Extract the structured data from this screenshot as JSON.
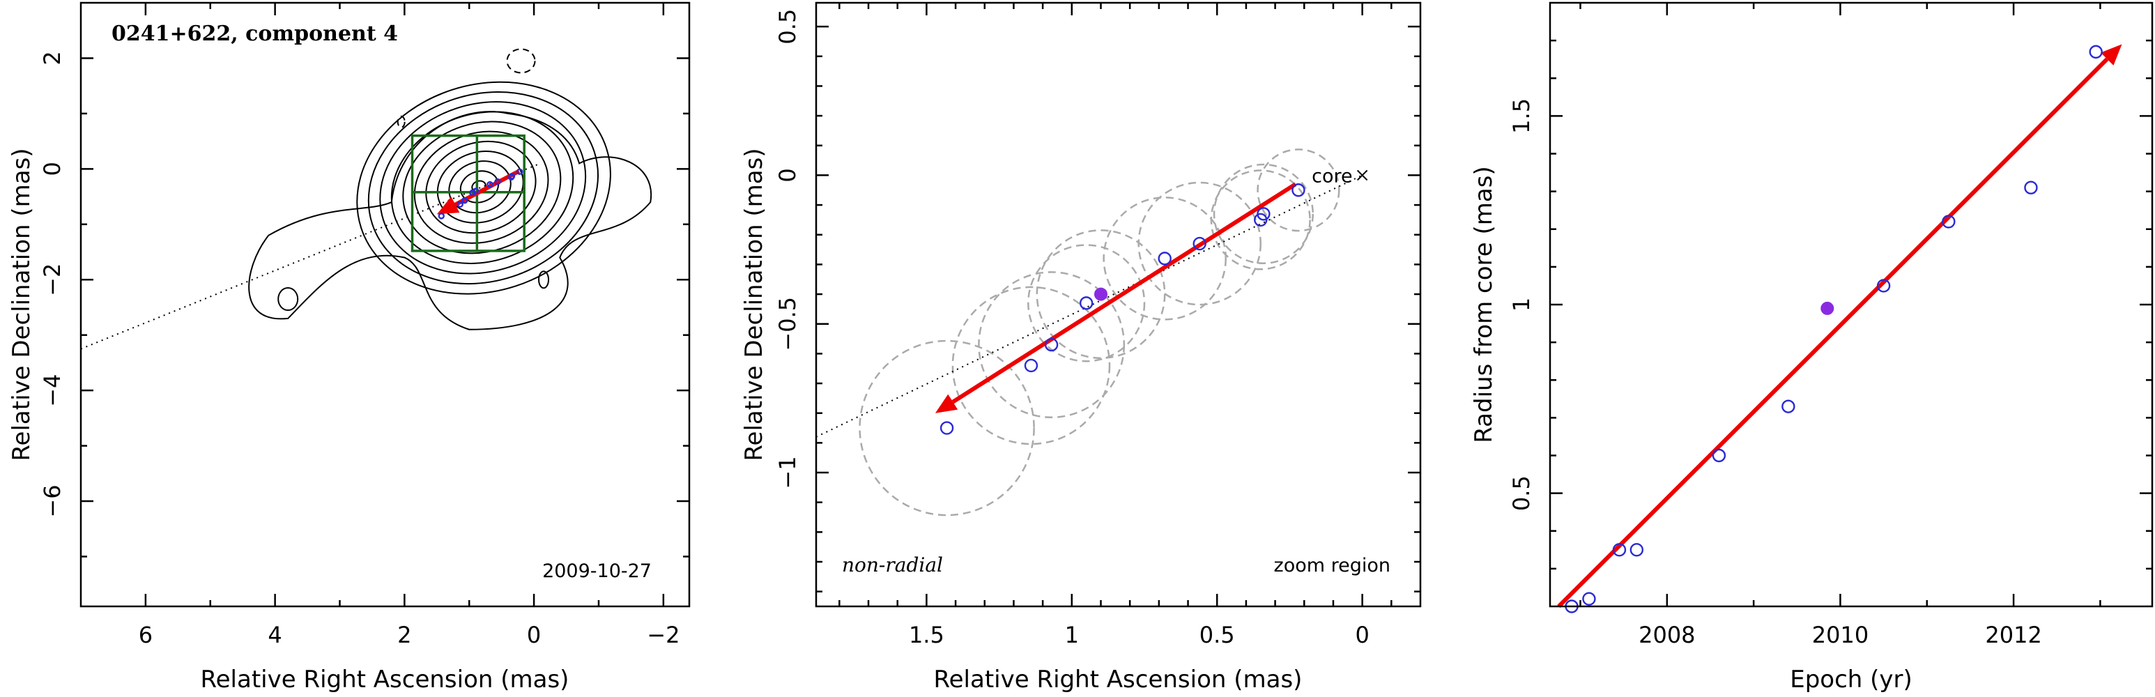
{
  "colors": {
    "arrow": "#ee0000",
    "open_marker": "#2a2ad6",
    "filled_marker": "#8a2be2",
    "grid_box": "#1a6b1a",
    "beam_circle": "#aaaaaa"
  },
  "chart_data": [
    {
      "type": "contour",
      "title": "0241+622, component 4",
      "date_label": "2009-10-27",
      "xlabel": "Relative Right Ascension (mas)",
      "ylabel": "Relative Declination (mas)",
      "xlim": [
        7,
        -2.4
      ],
      "ylim": [
        -7.9,
        3.0
      ],
      "x_ticks": [
        6,
        4,
        2,
        0,
        -2
      ],
      "x_tick_labels": [
        "6",
        "4",
        "2",
        "0",
        "−2"
      ],
      "y_ticks": [
        2,
        0,
        -2,
        -4,
        -6
      ],
      "y_tick_labels": [
        "2",
        "0",
        "−2",
        "−4",
        "−6"
      ],
      "grid_box": {
        "x": [
          1.88,
          0.88,
          0.15
        ],
        "y": [
          0.6,
          -0.42,
          -1.48
        ]
      },
      "component_points": [
        [
          0.9,
          -0.4
        ],
        [
          1.43,
          -0.85
        ],
        [
          1.14,
          -0.64
        ],
        [
          1.07,
          -0.57
        ],
        [
          0.95,
          -0.43
        ],
        [
          0.68,
          -0.28
        ],
        [
          0.56,
          -0.23
        ],
        [
          0.35,
          -0.15
        ],
        [
          0.34,
          -0.13
        ],
        [
          0.22,
          -0.05
        ]
      ],
      "trajectory_line": {
        "from": [
          7.0,
          -3.25
        ],
        "to": [
          -0.1,
          0.1
        ]
      },
      "arrow": {
        "from": [
          0.23,
          -0.04
        ],
        "to": [
          1.5,
          -0.82
        ]
      }
    },
    {
      "type": "scatter",
      "xlabel": "Relative Right Ascension (mas)",
      "ylabel": "Relative Declination (mas)",
      "xlim": [
        1.88,
        -0.2
      ],
      "ylim": [
        -1.45,
        0.58
      ],
      "x_ticks": [
        1.5,
        1,
        0.5,
        0
      ],
      "x_tick_labels": [
        "1.5",
        "1",
        "0.5",
        "0"
      ],
      "y_ticks": [
        0.5,
        0,
        -0.5,
        -1
      ],
      "y_tick_labels": [
        "0.5",
        "0",
        "−0.5",
        "−1"
      ],
      "core_label": "core",
      "core_position": [
        0,
        0
      ],
      "left_note": "non-radial",
      "right_note": "zoom region",
      "open_points": [
        [
          1.43,
          -0.85
        ],
        [
          1.14,
          -0.64
        ],
        [
          1.07,
          -0.57
        ],
        [
          0.95,
          -0.43
        ],
        [
          0.68,
          -0.28
        ],
        [
          0.56,
          -0.23
        ],
        [
          0.35,
          -0.15
        ],
        [
          0.34,
          -0.13
        ],
        [
          0.22,
          -0.05
        ]
      ],
      "filled_points": [
        [
          0.9,
          -0.4
        ]
      ],
      "beam_circles": [
        {
          "x": 1.43,
          "y": -0.85,
          "r": 0.3
        },
        {
          "x": 1.14,
          "y": -0.64,
          "r": 0.27
        },
        {
          "x": 1.07,
          "y": -0.57,
          "r": 0.25
        },
        {
          "x": 0.95,
          "y": -0.43,
          "r": 0.2
        },
        {
          "x": 0.9,
          "y": -0.4,
          "r": 0.22
        },
        {
          "x": 0.68,
          "y": -0.28,
          "r": 0.21
        },
        {
          "x": 0.56,
          "y": -0.23,
          "r": 0.21
        },
        {
          "x": 0.35,
          "y": -0.15,
          "r": 0.17
        },
        {
          "x": 0.34,
          "y": -0.13,
          "r": 0.17
        },
        {
          "x": 0.22,
          "y": -0.05,
          "r": 0.14
        }
      ],
      "trajectory_line": {
        "from": [
          1.88,
          -0.88
        ],
        "to": [
          0,
          0
        ]
      },
      "arrow": {
        "from": [
          0.23,
          -0.03
        ],
        "to": [
          1.47,
          -0.8
        ]
      }
    },
    {
      "type": "scatter",
      "xlabel": "Epoch (yr)",
      "ylabel": "Radius from core (mas)",
      "xlim": [
        2006.65,
        2013.6
      ],
      "ylim": [
        0.2,
        1.8
      ],
      "x_ticks": [
        2008,
        2010,
        2012
      ],
      "x_tick_labels": [
        "2008",
        "2010",
        "2012"
      ],
      "y_ticks": [
        0.5,
        1,
        1.5
      ],
      "y_tick_labels": [
        "0.5",
        "1",
        "1.5"
      ],
      "open_points": [
        [
          2006.9,
          0.2
        ],
        [
          2007.1,
          0.22
        ],
        [
          2007.45,
          0.35
        ],
        [
          2007.65,
          0.35
        ],
        [
          2008.6,
          0.6
        ],
        [
          2009.4,
          0.73
        ],
        [
          2010.5,
          1.05
        ],
        [
          2011.25,
          1.22
        ],
        [
          2012.2,
          1.31
        ],
        [
          2012.95,
          1.67
        ]
      ],
      "filled_points": [
        [
          2009.85,
          0.99
        ]
      ],
      "fit_arrow": {
        "from": [
          2006.75,
          0.18
        ],
        "to": [
          2013.25,
          1.69
        ]
      }
    }
  ]
}
